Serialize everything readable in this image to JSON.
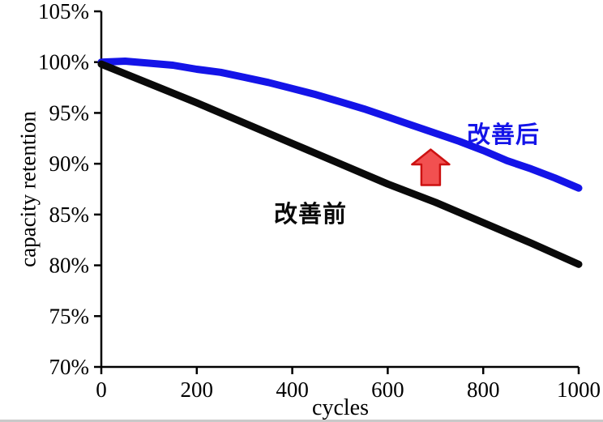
{
  "chart_data": {
    "type": "line",
    "title": "",
    "xlabel": "cycles",
    "ylabel": "capacity retention",
    "xlim": [
      0,
      1000
    ],
    "ylim": [
      70,
      105
    ],
    "grid": false,
    "legend_position": "none",
    "xticks": [
      0,
      200,
      400,
      600,
      800,
      1000
    ],
    "xtick_labels": [
      "0",
      "200",
      "400",
      "600",
      "800",
      "1000"
    ],
    "yticks": [
      70,
      75,
      80,
      85,
      90,
      95,
      100,
      105
    ],
    "ytick_labels": [
      "70%",
      "75%",
      "80%",
      "85%",
      "90%",
      "95%",
      "100%",
      "105%"
    ],
    "axis_color": "#000000",
    "series": [
      {
        "name": "改善后",
        "color": "#1414e8",
        "line_width": 9,
        "x": [
          0,
          50,
          100,
          150,
          200,
          250,
          300,
          350,
          400,
          450,
          500,
          550,
          600,
          650,
          700,
          750,
          800,
          850,
          900,
          950,
          1000
        ],
        "values": [
          100.0,
          100.1,
          99.9,
          99.7,
          99.3,
          99.0,
          98.5,
          98.0,
          97.4,
          96.8,
          96.1,
          95.4,
          94.6,
          93.8,
          93.0,
          92.2,
          91.3,
          90.3,
          89.5,
          88.6,
          87.6
        ]
      },
      {
        "name": "改善前",
        "color": "#0a0a0a",
        "line_width": 9,
        "x": [
          0,
          100,
          200,
          300,
          400,
          500,
          600,
          700,
          800,
          900,
          1000
        ],
        "values": [
          99.8,
          97.9,
          96.0,
          94.0,
          92.0,
          90.0,
          88.0,
          86.2,
          84.2,
          82.2,
          80.1
        ]
      }
    ],
    "annotations": [
      {
        "id": "label_after",
        "text": "改善后",
        "color": "#1414e8"
      },
      {
        "id": "label_before",
        "text": "改善前",
        "color": "#0a0a0a"
      },
      {
        "id": "up_arrow",
        "type": "arrow-up",
        "x": 690,
        "y_tip": 91.4,
        "y_base": 87.9,
        "fill": "#f25050",
        "stroke": "#cc1111"
      }
    ]
  }
}
